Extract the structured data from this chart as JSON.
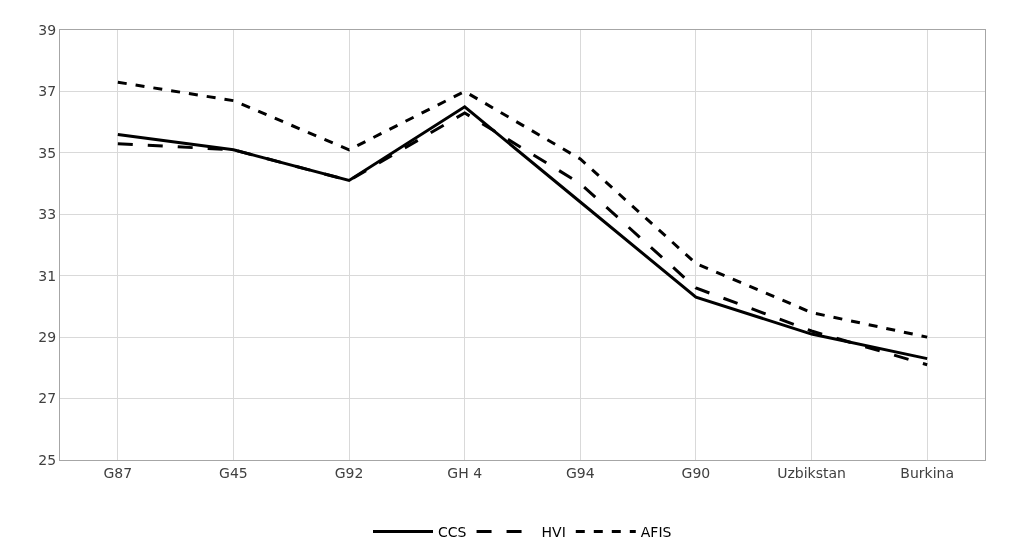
{
  "chart_data": {
    "type": "line",
    "categories": [
      "G87",
      "G45",
      "G92",
      "GH 4",
      "G94",
      "G90",
      "Uzbikstan",
      "Burkina"
    ],
    "series": [
      {
        "name": "CCS",
        "color": "#000000",
        "line_style": "solid",
        "values": [
          35.6,
          35.1,
          34.1,
          36.5,
          33.4,
          30.3,
          29.1,
          28.3
        ]
      },
      {
        "name": "HVI",
        "color": "#000000",
        "line_style": "dashed",
        "values": [
          35.3,
          35.1,
          34.1,
          36.3,
          34.0,
          30.6,
          29.2,
          28.1
        ]
      },
      {
        "name": "AFIS",
        "color": "#000000",
        "line_style": "dotted",
        "values": [
          37.3,
          36.7,
          35.1,
          37.0,
          34.8,
          31.4,
          29.8,
          29.0
        ]
      }
    ],
    "ylim": [
      25,
      39
    ],
    "yticks": [
      25,
      27,
      29,
      31,
      33,
      35,
      37,
      39
    ],
    "grid": true,
    "legend": "bottom",
    "marker": "none"
  }
}
